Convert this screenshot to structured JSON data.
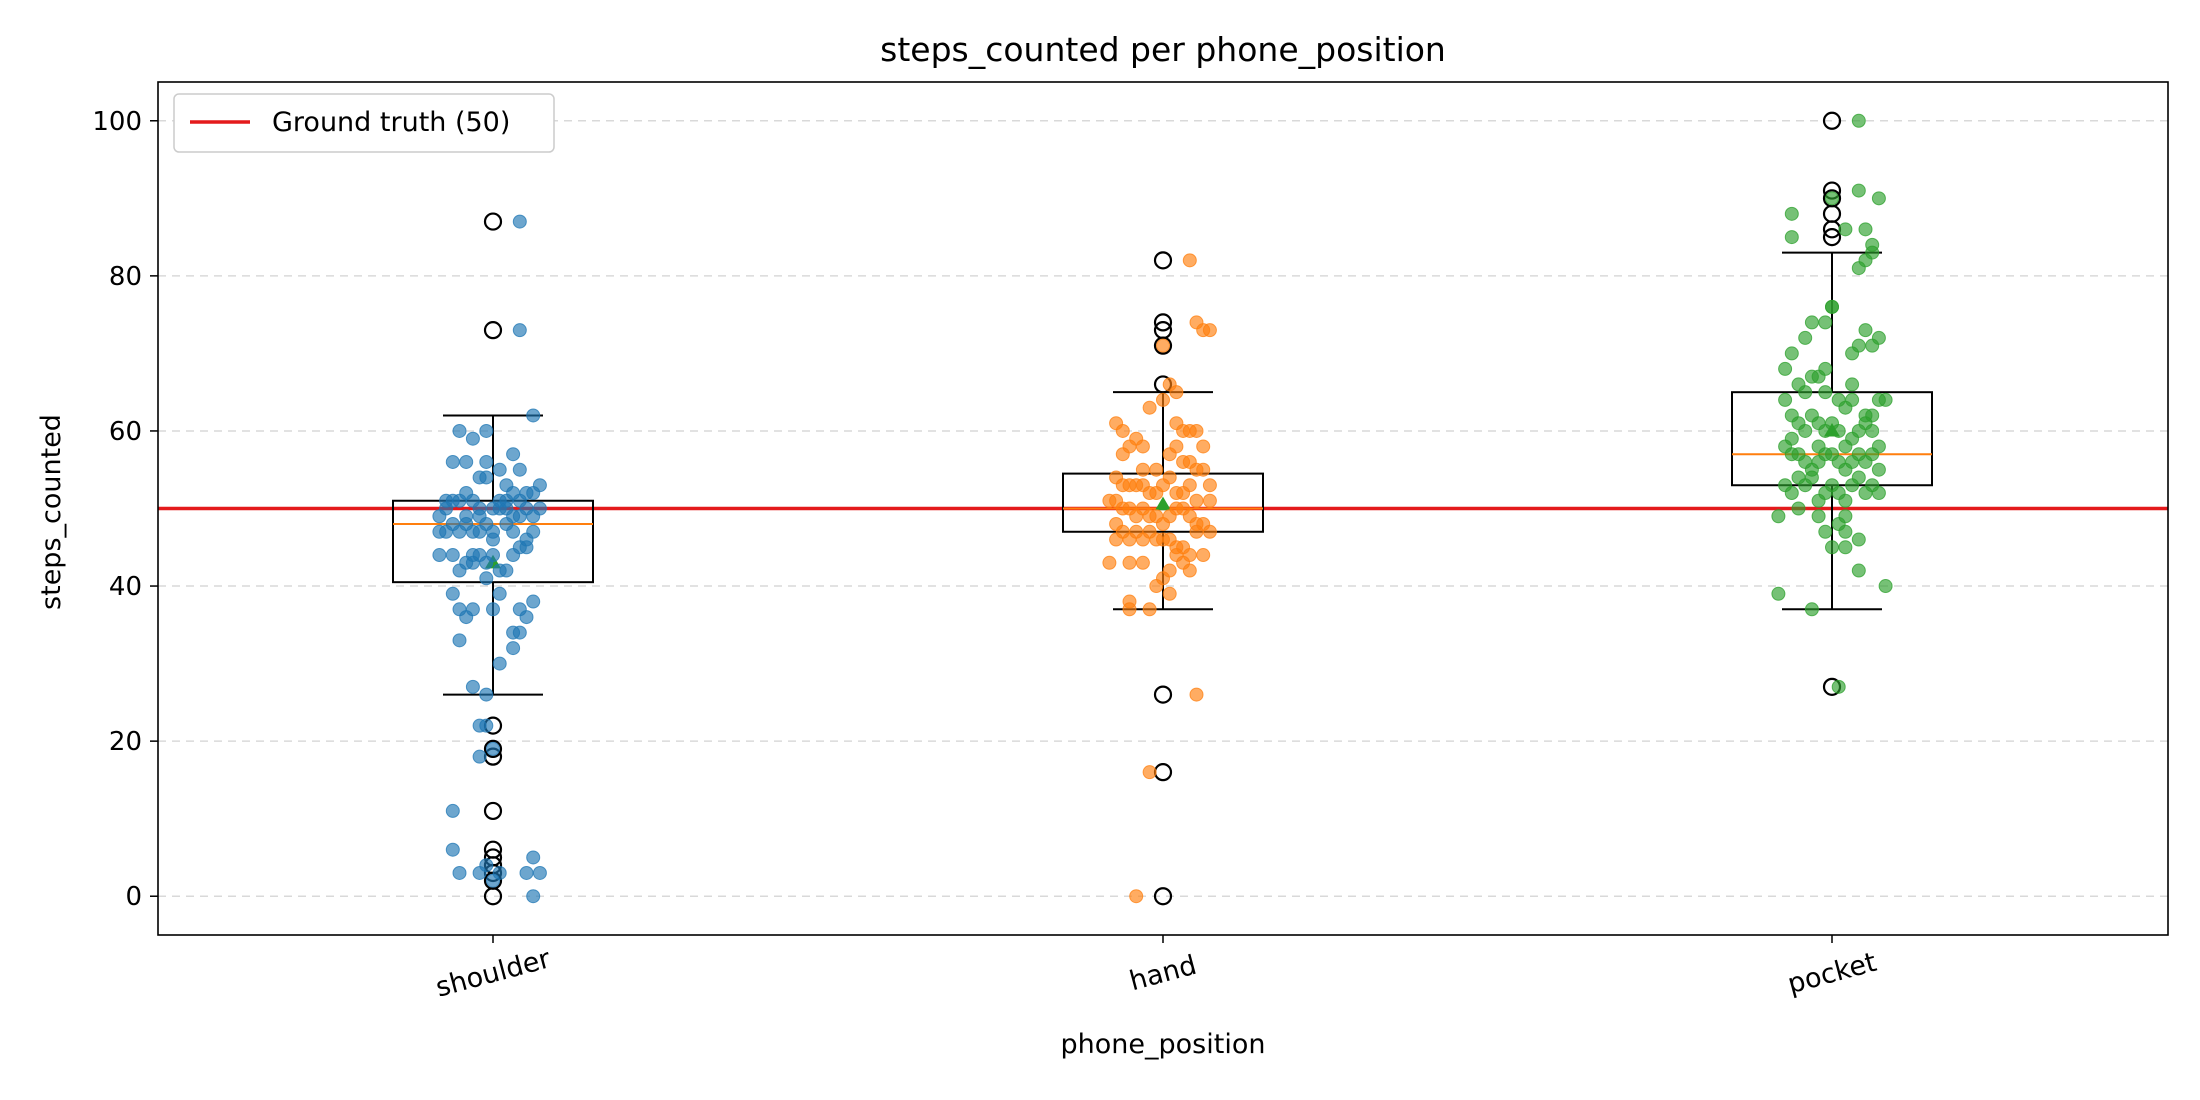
{
  "chart_data": {
    "type": "box",
    "title": "steps_counted per phone_position",
    "xlabel": "phone_position",
    "ylabel": "steps_counted",
    "ylim": [
      -5,
      105
    ],
    "yticks": [
      0,
      20,
      40,
      60,
      80,
      100
    ],
    "grid": "y-dashed",
    "legend": {
      "placement": "top-left",
      "entries": [
        {
          "label": "Ground truth (50)",
          "color": "#e41a1c"
        }
      ]
    },
    "reference_line": {
      "label": "Ground truth (50)",
      "value": 50,
      "color": "#e41a1c"
    },
    "categories": [
      "shoulder",
      "hand",
      "pocket"
    ],
    "colors": {
      "shoulder": "#1f77b4",
      "hand": "#ff7f0e",
      "pocket": "#2ca02c",
      "median": "#ff7f0e",
      "mean": "#2ca02c"
    },
    "boxes": [
      {
        "category": "shoulder",
        "q1": 40.5,
        "median": 48,
        "q3": 51,
        "whisker_low": 26,
        "whisker_high": 62,
        "mean": 43,
        "outliers": [
          87,
          73,
          22,
          19,
          18,
          11,
          6,
          5,
          4,
          3,
          2,
          0
        ]
      },
      {
        "category": "hand",
        "q1": 47,
        "median": 50,
        "q3": 54.5,
        "whisker_low": 37,
        "whisker_high": 65,
        "mean": 50.5,
        "outliers": [
          82,
          74,
          73,
          71,
          66,
          26,
          16,
          0
        ]
      },
      {
        "category": "pocket",
        "q1": 53,
        "median": 57,
        "q3": 65,
        "whisker_low": 37,
        "whisker_high": 83,
        "mean": 60,
        "outliers": [
          100,
          91,
          90,
          88,
          86,
          85,
          27
        ]
      }
    ],
    "points": {
      "shoulder": [
        [
          -0.06,
          56
        ],
        [
          -0.04,
          56
        ],
        [
          -0.05,
          60
        ],
        [
          -0.03,
          59
        ],
        [
          -0.02,
          54
        ],
        [
          -0.01,
          54
        ],
        [
          -0.07,
          50
        ],
        [
          -0.06,
          51
        ],
        [
          -0.05,
          51
        ],
        [
          -0.04,
          49
        ],
        [
          -0.03,
          51
        ],
        [
          -0.02,
          50
        ],
        [
          -0.01,
          48
        ],
        [
          0.0,
          47
        ],
        [
          0.01,
          50
        ],
        [
          0.02,
          51
        ],
        [
          0.03,
          52
        ],
        [
          0.04,
          51
        ],
        [
          0.05,
          50
        ],
        [
          0.06,
          52
        ],
        [
          0.07,
          53
        ],
        [
          -0.08,
          47
        ],
        [
          -0.07,
          47
        ],
        [
          -0.06,
          48
        ],
        [
          -0.05,
          47
        ],
        [
          -0.04,
          48
        ],
        [
          -0.03,
          47
        ],
        [
          -0.02,
          49
        ],
        [
          0.0,
          50
        ],
        [
          0.02,
          48
        ],
        [
          0.03,
          47
        ],
        [
          0.04,
          49
        ],
        [
          0.05,
          46
        ],
        [
          0.06,
          47
        ],
        [
          -0.08,
          44
        ],
        [
          -0.06,
          44
        ],
        [
          -0.05,
          42
        ],
        [
          -0.04,
          43
        ],
        [
          -0.03,
          44
        ],
        [
          -0.02,
          44
        ],
        [
          -0.01,
          43
        ],
        [
          0.01,
          42
        ],
        [
          0.02,
          42
        ],
        [
          0.03,
          44
        ],
        [
          0.04,
          45
        ],
        [
          0.05,
          45
        ],
        [
          -0.01,
          41
        ],
        [
          0.0,
          46
        ],
        [
          0.01,
          55
        ],
        [
          0.02,
          53
        ],
        [
          0.03,
          57
        ],
        [
          0.04,
          55
        ],
        [
          -0.01,
          60
        ],
        [
          -0.01,
          56
        ],
        [
          -0.06,
          39
        ],
        [
          -0.05,
          37
        ],
        [
          -0.04,
          36
        ],
        [
          -0.05,
          33
        ],
        [
          -0.03,
          37
        ],
        [
          0.0,
          37
        ],
        [
          0.01,
          39
        ],
        [
          0.04,
          37
        ],
        [
          0.05,
          36
        ],
        [
          0.06,
          38
        ],
        [
          0.03,
          34
        ],
        [
          0.04,
          34
        ],
        [
          0.03,
          32
        ],
        [
          0.01,
          30
        ],
        [
          -0.03,
          27
        ],
        [
          -0.01,
          26
        ],
        [
          0.06,
          62
        ],
        [
          -0.02,
          22
        ],
        [
          -0.01,
          22
        ],
        [
          0.0,
          19
        ],
        [
          -0.02,
          18
        ],
        [
          -0.06,
          11
        ],
        [
          -0.06,
          6
        ],
        [
          -0.05,
          3
        ],
        [
          -0.02,
          3
        ],
        [
          -0.01,
          4
        ],
        [
          0.0,
          2
        ],
        [
          0.01,
          3
        ],
        [
          0.05,
          3
        ],
        [
          0.07,
          3
        ],
        [
          0.06,
          0
        ],
        [
          0.06,
          5
        ],
        [
          0.04,
          73
        ],
        [
          0.04,
          87
        ],
        [
          0.05,
          52
        ],
        [
          -0.02,
          47
        ],
        [
          0.06,
          49
        ],
        [
          0.07,
          50
        ],
        [
          -0.08,
          49
        ],
        [
          -0.07,
          51
        ],
        [
          0.03,
          49
        ],
        [
          -0.04,
          52
        ],
        [
          0.02,
          50
        ],
        [
          0.0,
          44
        ],
        [
          -0.03,
          43
        ],
        [
          0.01,
          51
        ]
      ],
      "hand": [
        [
          -0.07,
          61
        ],
        [
          -0.06,
          60
        ],
        [
          -0.05,
          58
        ],
        [
          -0.04,
          59
        ],
        [
          -0.03,
          58
        ],
        [
          -0.02,
          63
        ],
        [
          0.0,
          64
        ],
        [
          0.01,
          66
        ],
        [
          0.02,
          65
        ],
        [
          0.03,
          60
        ],
        [
          0.04,
          60
        ],
        [
          0.05,
          60
        ],
        [
          0.06,
          58
        ],
        [
          0.02,
          61
        ],
        [
          0.03,
          56
        ],
        [
          0.04,
          56
        ],
        [
          0.05,
          55
        ],
        [
          0.06,
          55
        ],
        [
          0.07,
          53
        ],
        [
          -0.07,
          54
        ],
        [
          -0.06,
          53
        ],
        [
          -0.05,
          53
        ],
        [
          -0.04,
          53
        ],
        [
          -0.03,
          53
        ],
        [
          -0.02,
          52
        ],
        [
          -0.01,
          52
        ],
        [
          0.0,
          53
        ],
        [
          0.01,
          54
        ],
        [
          0.02,
          52
        ],
        [
          -0.08,
          51
        ],
        [
          -0.07,
          51
        ],
        [
          -0.06,
          50
        ],
        [
          -0.05,
          50
        ],
        [
          -0.04,
          49
        ],
        [
          -0.03,
          50
        ],
        [
          -0.02,
          49
        ],
        [
          -0.01,
          49
        ],
        [
          0.0,
          48
        ],
        [
          0.01,
          49
        ],
        [
          0.02,
          50
        ],
        [
          0.03,
          50
        ],
        [
          0.04,
          49
        ],
        [
          0.05,
          48
        ],
        [
          0.06,
          48
        ],
        [
          0.07,
          51
        ],
        [
          -0.07,
          46
        ],
        [
          -0.06,
          47
        ],
        [
          -0.05,
          46
        ],
        [
          -0.04,
          47
        ],
        [
          -0.03,
          46
        ],
        [
          -0.02,
          47
        ],
        [
          -0.01,
          46
        ],
        [
          0.0,
          46
        ],
        [
          0.01,
          46
        ],
        [
          0.02,
          45
        ],
        [
          0.03,
          45
        ],
        [
          0.04,
          44
        ],
        [
          0.05,
          47
        ],
        [
          0.06,
          44
        ],
        [
          -0.08,
          43
        ],
        [
          -0.05,
          43
        ],
        [
          -0.03,
          43
        ],
        [
          0.0,
          41
        ],
        [
          0.01,
          42
        ],
        [
          0.03,
          43
        ],
        [
          0.04,
          42
        ],
        [
          -0.05,
          38
        ],
        [
          -0.05,
          37
        ],
        [
          -0.02,
          37
        ],
        [
          -0.01,
          40
        ],
        [
          0.01,
          39
        ],
        [
          0.0,
          71
        ],
        [
          0.05,
          74
        ],
        [
          0.06,
          73
        ],
        [
          0.07,
          73
        ],
        [
          0.04,
          82
        ],
        [
          -0.02,
          16
        ],
        [
          0.05,
          26
        ],
        [
          -0.04,
          0
        ],
        [
          0.01,
          57
        ],
        [
          0.02,
          58
        ],
        [
          -0.01,
          55
        ],
        [
          0.03,
          52
        ],
        [
          0.05,
          51
        ],
        [
          -0.07,
          48
        ],
        [
          0.07,
          47
        ],
        [
          -0.06,
          57
        ],
        [
          0.02,
          44
        ],
        [
          -0.03,
          55
        ],
        [
          0.04,
          53
        ]
      ],
      "pocket": [
        [
          0.04,
          100
        ],
        [
          0.04,
          91
        ],
        [
          0.07,
          90
        ],
        [
          0.0,
          90
        ],
        [
          -0.06,
          88
        ],
        [
          -0.06,
          85
        ],
        [
          0.02,
          86
        ],
        [
          0.06,
          83
        ],
        [
          0.05,
          82
        ],
        [
          0.04,
          81
        ],
        [
          -0.03,
          74
        ],
        [
          -0.01,
          74
        ],
        [
          0.0,
          76
        ],
        [
          0.0,
          76
        ],
        [
          -0.07,
          68
        ],
        [
          -0.06,
          70
        ],
        [
          -0.05,
          66
        ],
        [
          -0.04,
          65
        ],
        [
          -0.03,
          67
        ],
        [
          -0.02,
          67
        ],
        [
          -0.01,
          65
        ],
        [
          0.01,
          64
        ],
        [
          0.02,
          63
        ],
        [
          0.03,
          64
        ],
        [
          0.04,
          71
        ],
        [
          0.05,
          73
        ],
        [
          0.06,
          71
        ],
        [
          0.07,
          72
        ],
        [
          0.07,
          64
        ],
        [
          0.08,
          64
        ],
        [
          -0.07,
          64
        ],
        [
          -0.06,
          62
        ],
        [
          -0.05,
          61
        ],
        [
          -0.04,
          60
        ],
        [
          -0.03,
          62
        ],
        [
          -0.02,
          61
        ],
        [
          -0.01,
          60
        ],
        [
          0.0,
          61
        ],
        [
          0.01,
          60
        ],
        [
          0.02,
          58
        ],
        [
          0.03,
          59
        ],
        [
          0.04,
          60
        ],
        [
          0.05,
          61
        ],
        [
          0.06,
          62
        ],
        [
          -0.07,
          58
        ],
        [
          -0.06,
          57
        ],
        [
          -0.05,
          57
        ],
        [
          -0.04,
          56
        ],
        [
          -0.03,
          55
        ],
        [
          -0.02,
          56
        ],
        [
          -0.01,
          57
        ],
        [
          0.0,
          57
        ],
        [
          0.01,
          56
        ],
        [
          0.02,
          55
        ],
        [
          0.03,
          56
        ],
        [
          0.04,
          57
        ],
        [
          0.05,
          56
        ],
        [
          0.06,
          57
        ],
        [
          0.07,
          55
        ],
        [
          -0.07,
          53
        ],
        [
          -0.06,
          52
        ],
        [
          -0.05,
          54
        ],
        [
          -0.04,
          53
        ],
        [
          -0.03,
          54
        ],
        [
          -0.02,
          51
        ],
        [
          -0.01,
          52
        ],
        [
          0.0,
          53
        ],
        [
          0.01,
          52
        ],
        [
          0.02,
          51
        ],
        [
          0.03,
          53
        ],
        [
          0.04,
          54
        ],
        [
          0.05,
          52
        ],
        [
          0.06,
          53
        ],
        [
          0.07,
          52
        ],
        [
          -0.08,
          49
        ],
        [
          -0.05,
          50
        ],
        [
          -0.02,
          49
        ],
        [
          0.01,
          48
        ],
        [
          0.02,
          49
        ],
        [
          -0.01,
          47
        ],
        [
          0.02,
          47
        ],
        [
          0.04,
          46
        ],
        [
          0.0,
          45
        ],
        [
          0.02,
          45
        ],
        [
          0.04,
          42
        ],
        [
          0.08,
          40
        ],
        [
          -0.08,
          39
        ],
        [
          -0.03,
          37
        ],
        [
          0.01,
          27
        ],
        [
          0.06,
          84
        ],
        [
          0.05,
          86
        ],
        [
          0.03,
          70
        ],
        [
          -0.04,
          72
        ],
        [
          0.03,
          66
        ],
        [
          -0.06,
          59
        ],
        [
          0.07,
          58
        ],
        [
          -0.01,
          68
        ],
        [
          0.05,
          62
        ],
        [
          0.06,
          60
        ],
        [
          -0.02,
          58
        ]
      ]
    }
  }
}
